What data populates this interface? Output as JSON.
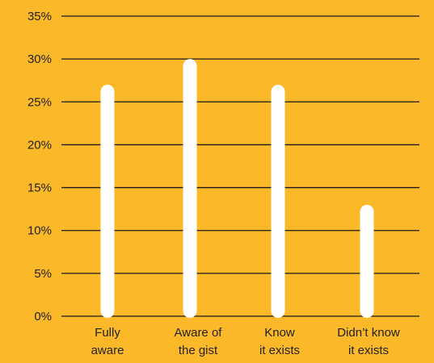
{
  "colors": {
    "background": "#FBB829",
    "bar": "#FFFFFF",
    "grid": "#1A1A1A",
    "text": "#222222"
  },
  "chart_data": {
    "type": "bar",
    "title": "",
    "xlabel": "",
    "ylabel": "",
    "ylim": [
      0,
      35
    ],
    "yticks": [
      "0%",
      "5%",
      "10%",
      "15%",
      "20%",
      "25%",
      "30%",
      "35%"
    ],
    "grid": true,
    "legend": "none",
    "categories": [
      [
        "Fully",
        "aware"
      ],
      [
        "Aware of",
        "the gist"
      ],
      [
        "Know",
        "it exists"
      ],
      [
        "Didn’t know",
        "it exists"
      ]
    ],
    "values": [
      27,
      30,
      27,
      13
    ]
  }
}
